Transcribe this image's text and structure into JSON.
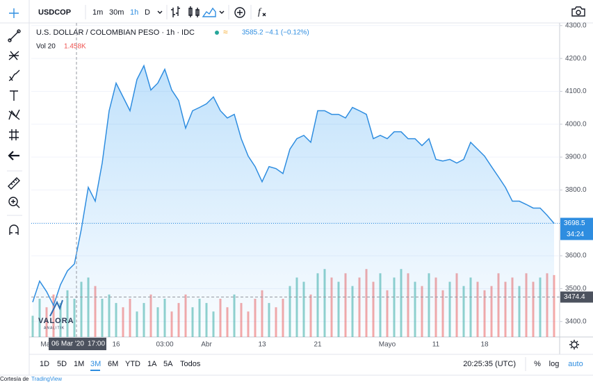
{
  "toolbar": {
    "symbol": "USDCOP",
    "intervals": [
      "1m",
      "30m",
      "1h",
      "D"
    ]
  },
  "ranges": [
    "1D",
    "5D",
    "1M",
    "3M",
    "6M",
    "YTD",
    "1A",
    "5A",
    "Todos"
  ],
  "clock": "20:25:35 (UTC)",
  "scale_buttons": [
    "%",
    "log",
    "auto"
  ],
  "footer": {
    "prefix": "Cortesía de",
    "brand": "TradingView"
  },
  "watermark": {
    "name": "VALORA",
    "sub": "ANALITIK"
  },
  "crosshair": {
    "date": "06 Mar '20",
    "time": "17:00"
  },
  "chart_data": {
    "type": "area",
    "title": "U.S. DOLLAR / COLOMBIAN PESO · 1h · IDC",
    "quote": "3585.2 −4.1 (−0.12%)",
    "color": "#2e8de0",
    "grid": true,
    "categories": [
      null,
      null,
      "Mar",
      null,
      null,
      null,
      null,
      null,
      null,
      null,
      null,
      null,
      "16",
      null,
      null,
      null,
      null,
      null,
      null,
      "03:00",
      null,
      null,
      null,
      null,
      null,
      "Abr",
      null,
      null,
      null,
      null,
      null,
      null,
      null,
      "13",
      null,
      null,
      null,
      null,
      null,
      null,
      null,
      "21",
      null,
      null,
      null,
      null,
      null,
      null,
      null,
      null,
      null,
      "Mayo",
      null,
      null,
      null,
      null,
      null,
      null,
      "11",
      null,
      null,
      null,
      null,
      null,
      null,
      "18",
      null,
      null,
      null,
      null,
      null,
      null,
      null,
      null,
      null,
      null
    ],
    "values": [
      3459,
      3523,
      3491,
      3449,
      3512,
      3554,
      3575,
      3681,
      3808,
      3766,
      3882,
      4041,
      4125,
      4083,
      4041,
      4136,
      4178,
      4104,
      4125,
      4167,
      4104,
      4072,
      3988,
      4041,
      4051,
      4062,
      4083,
      4041,
      4019,
      4030,
      3956,
      3903,
      3871,
      3825,
      3871,
      3865,
      3850,
      3924,
      3956,
      3966,
      3945,
      4041,
      4041,
      4030,
      4030,
      4019,
      4051,
      4041,
      4030,
      3956,
      3966,
      3956,
      3977,
      3977,
      3956,
      3956,
      3935,
      3956,
      3893,
      3888,
      3893,
      3882,
      3893,
      3945,
      3924,
      3903,
      3871,
      3840,
      3808,
      3766,
      3766,
      3756,
      3745,
      3745,
      3723,
      3698.5
    ],
    "ylim": [
      3353,
      4308
    ],
    "yticks": [
      {
        "value": 3400,
        "label": "3400.0"
      },
      {
        "value": 3500,
        "label": "3500.0"
      },
      {
        "value": 3600,
        "label": "3600.0"
      },
      {
        "value": 3700,
        "label": "3700.0"
      },
      {
        "value": 3800,
        "label": "3800.0"
      },
      {
        "value": 3900,
        "label": "3900.0"
      },
      {
        "value": 4000,
        "label": "4000.0"
      },
      {
        "value": 4100,
        "label": "4100.0"
      },
      {
        "value": 4200,
        "label": "4200.0"
      },
      {
        "value": 4300,
        "label": "4300.0"
      }
    ],
    "last_price": {
      "value": 3698.5,
      "label": "3698.5"
    },
    "countdown": "34:24",
    "crosshair_price": {
      "value": 3474.4,
      "label": "3474.4"
    },
    "volume": {
      "name": "Vol 20",
      "value_label": "1.458K",
      "up_color": "#26a69a",
      "down_color": "#ef5350",
      "ylim": [
        0,
        1.8
      ],
      "values": [
        0.5,
        0.9,
        0.7,
        1.0,
        0.8,
        1.1,
        0.9,
        1.3,
        1.4,
        1.2,
        0.9,
        1.0,
        0.8,
        0.7,
        0.9,
        0.6,
        0.8,
        1.0,
        0.7,
        0.9,
        0.6,
        0.8,
        1.0,
        0.7,
        0.9,
        0.8,
        0.6,
        0.9,
        0.7,
        1.0,
        0.8,
        0.6,
        0.9,
        1.1,
        0.8,
        0.7,
        0.9,
        1.2,
        1.4,
        1.3,
        1.0,
        1.5,
        1.6,
        1.4,
        1.3,
        1.5,
        1.2,
        1.4,
        1.6,
        1.3,
        1.5,
        1.1,
        1.4,
        1.6,
        1.5,
        1.3,
        1.2,
        1.5,
        1.4,
        1.1,
        1.3,
        1.5,
        1.2,
        1.4,
        1.3,
        1.1,
        1.2,
        1.5,
        1.3,
        1.4,
        1.2,
        1.5,
        1.3,
        1.4,
        1.5,
        1.458
      ]
    }
  }
}
